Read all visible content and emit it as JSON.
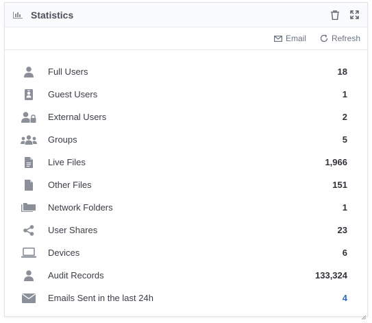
{
  "header": {
    "title": "Statistics"
  },
  "toolbar": {
    "email_label": "Email",
    "refresh_label": "Refresh"
  },
  "colors": {
    "icon": "#8a8f99",
    "link": "#2f6db5"
  },
  "stats": [
    {
      "icon": "user-icon",
      "label": "Full Users",
      "value": "18"
    },
    {
      "icon": "id-badge-icon",
      "label": "Guest Users",
      "value": "1"
    },
    {
      "icon": "user-lock-icon",
      "label": "External Users",
      "value": "2"
    },
    {
      "icon": "users-group-icon",
      "label": "Groups",
      "value": "5"
    },
    {
      "icon": "file-text-icon",
      "label": "Live Files",
      "value": "1,966"
    },
    {
      "icon": "file-icon",
      "label": "Other Files",
      "value": "151"
    },
    {
      "icon": "folders-icon",
      "label": "Network Folders",
      "value": "1"
    },
    {
      "icon": "share-icon",
      "label": "User Shares",
      "value": "23"
    },
    {
      "icon": "laptop-icon",
      "label": "Devices",
      "value": "6"
    },
    {
      "icon": "user-icon",
      "label": "Audit Records",
      "value": "133,324"
    },
    {
      "icon": "envelope-icon",
      "label": "Emails Sent in the last 24h",
      "value": "4"
    }
  ]
}
